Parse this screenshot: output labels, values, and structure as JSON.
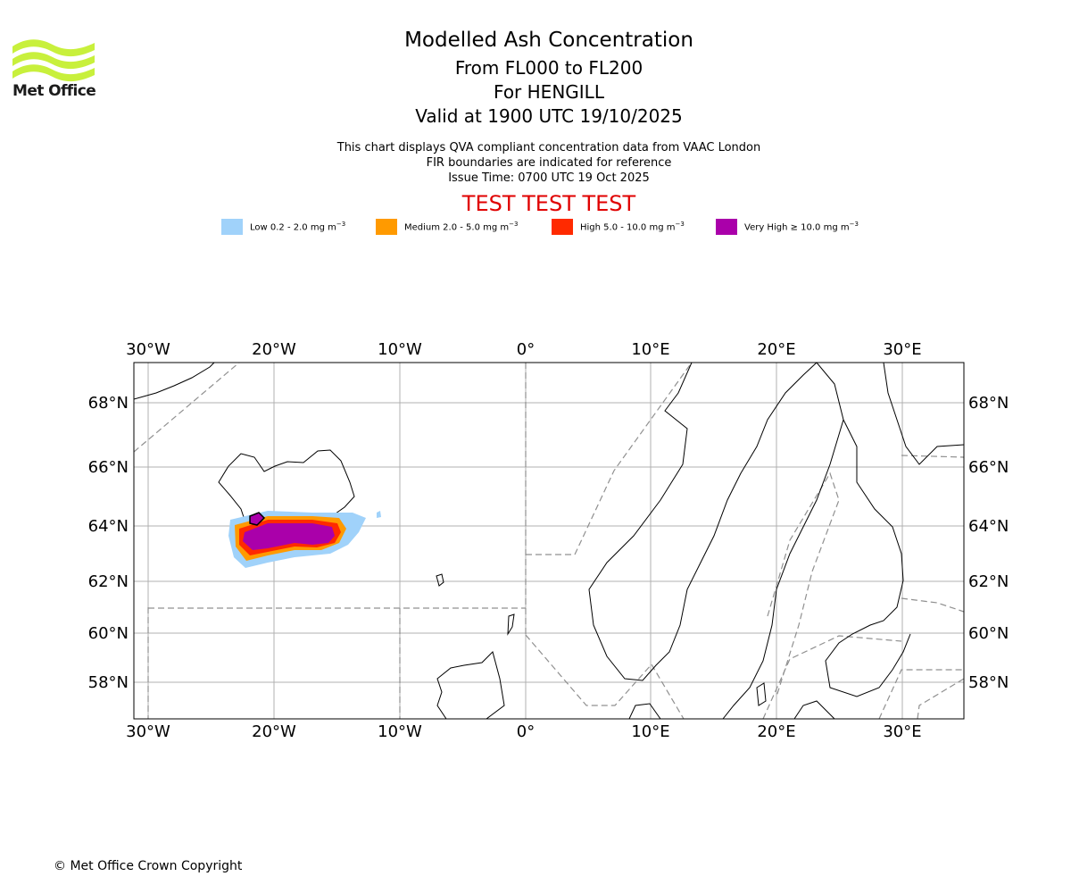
{
  "header": {
    "logo_name": "Met Office",
    "title": "Modelled Ash Concentration",
    "level_range": "From FL000 to FL200",
    "volcano": "For HENGILL",
    "valid_time": "Valid at 1900 UTC 19/10/2025",
    "note_1": "This chart displays QVA compliant concentration data from VAAC London",
    "note_2": "FIR boundaries are indicated for reference",
    "issue_time": "Issue Time: 0700 UTC 19 Oct 2025",
    "test_banner": "TEST TEST TEST"
  },
  "legend": [
    {
      "label": "Low 0.2 - 2.0 mg m",
      "unit_sup": "−3",
      "color": "#a0d2fa"
    },
    {
      "label": "Medium 2.0 - 5.0 mg m",
      "unit_sup": "−3",
      "color": "#ff9a00"
    },
    {
      "label": "High 5.0 - 10.0 mg m",
      "unit_sup": "−3",
      "color": "#ff2a00"
    },
    {
      "label": "Very High  ≥  10.0 mg m",
      "unit_sup": "−3",
      "color": "#aa00aa"
    }
  ],
  "map": {
    "lon_ticks": [
      "30°W",
      "20°W",
      "10°W",
      "0°",
      "10°E",
      "20°E",
      "30°E"
    ],
    "lat_ticks": [
      "68°N",
      "66°N",
      "64°N",
      "62°N",
      "60°N",
      "58°N"
    ],
    "grid": true,
    "coastline_color": "#000000",
    "fir_boundary_color": "#909090"
  },
  "footer": {
    "copyright": "© Met Office Crown Copyright"
  }
}
